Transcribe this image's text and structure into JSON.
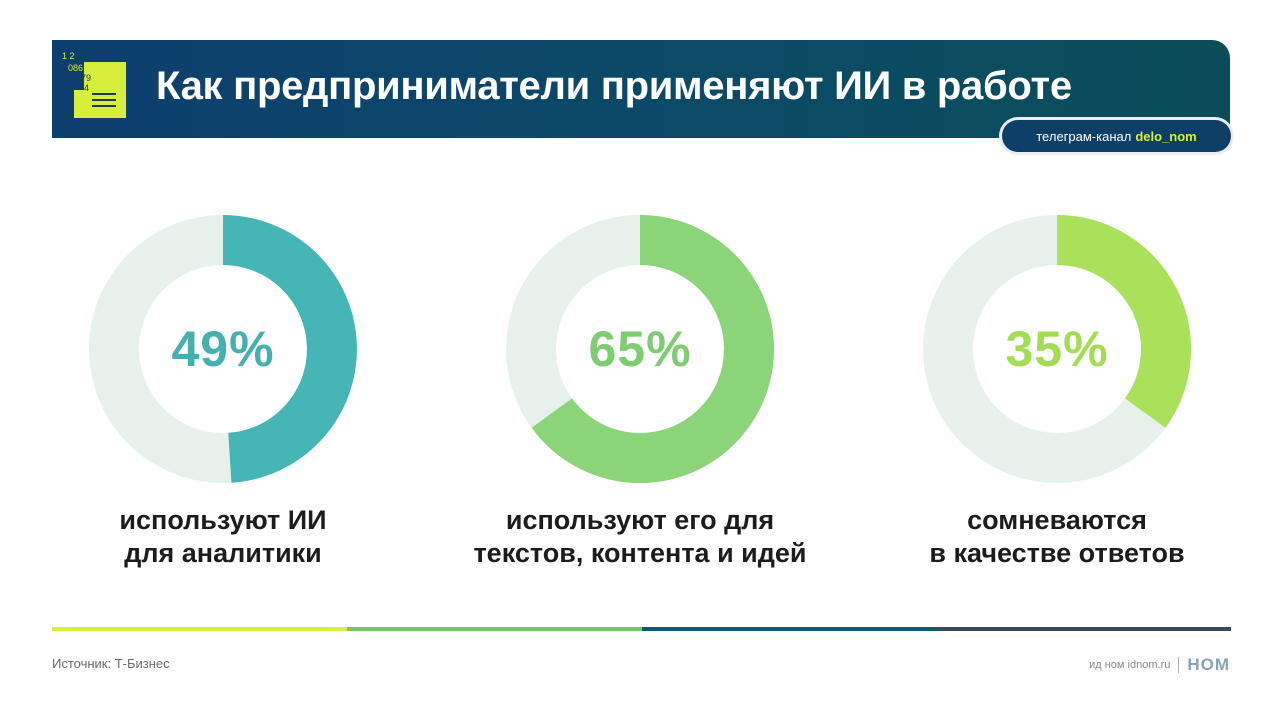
{
  "header": {
    "title": "Как предприниматели применяют ИИ в работе",
    "channel_prefix": "телеграм-канал",
    "channel_handle": "delo_nom",
    "logo_digits": [
      "1 2",
      "086 3",
      "579",
      "4"
    ]
  },
  "colors": {
    "banner": "#0c4a67",
    "track": "#e6f1ec",
    "accent": "#d7ef3c"
  },
  "chart_data": {
    "type": "pie",
    "variant": "donut",
    "items": [
      {
        "value": 49,
        "label": "49%",
        "caption": [
          "используют ИИ",
          "для аналитики"
        ],
        "color": "#45b5b5",
        "text_color": "#45b0ad"
      },
      {
        "value": 65,
        "label": "65%",
        "caption": [
          "используют его для",
          "текстов, контента и идей"
        ],
        "color": "#8bd47a",
        "text_color": "#7fcc72"
      },
      {
        "value": 35,
        "label": "35%",
        "caption": [
          "сомневаются",
          "в качестве ответов"
        ],
        "color": "#a9e25a",
        "text_color": "#a3dd55"
      }
    ]
  },
  "footer": {
    "source": "Источник: Т-Бизнес",
    "site": "ид ном idnom.ru",
    "brand": "НОМ",
    "rule_colors": [
      "#d4ef3f",
      "#7fc06b",
      "#0e5870",
      "#3a4a55"
    ]
  }
}
